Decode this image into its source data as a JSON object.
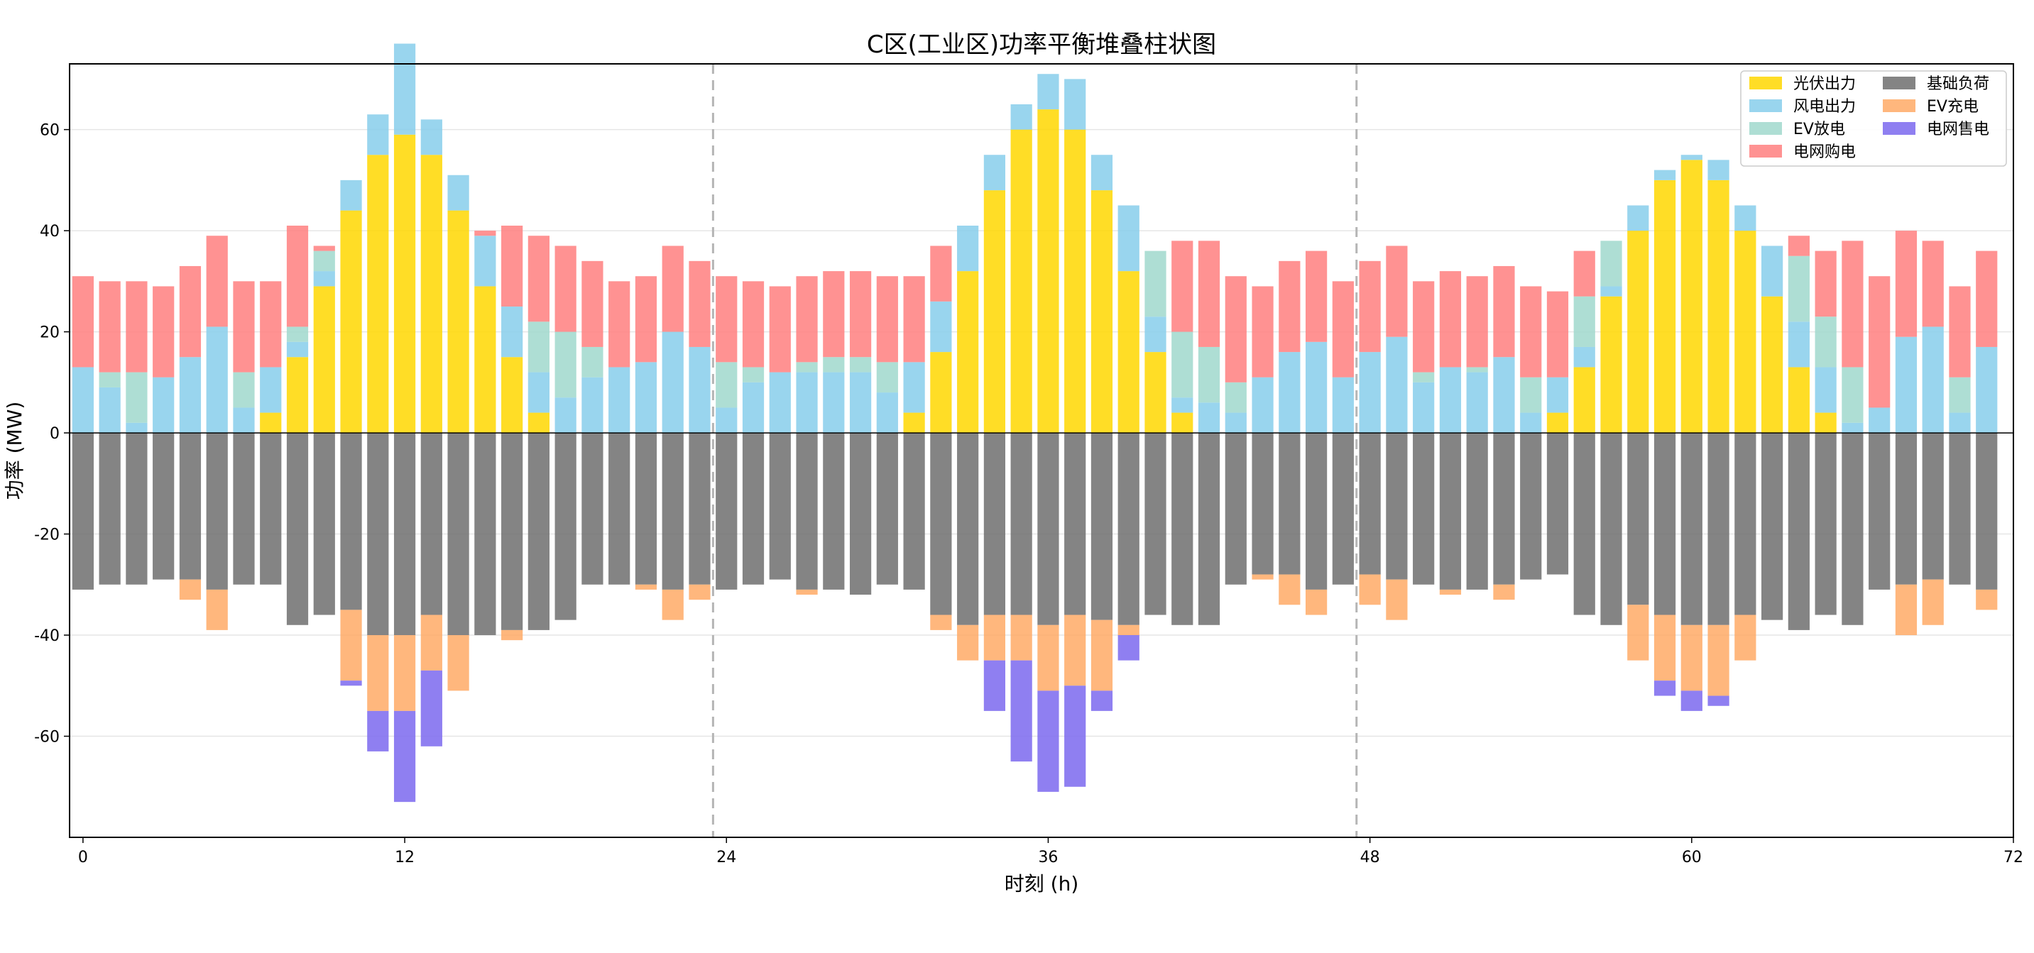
{
  "chart_data": {
    "type": "bar",
    "stacked": true,
    "title": "C区(工业区)功率平衡堆叠柱状图",
    "xlabel": "时刻 (h)",
    "ylabel": "功率 (MW)",
    "xlim": [
      -0.5,
      72
    ],
    "ylim": [
      -80,
      73
    ],
    "xticks": [
      0,
      12,
      24,
      36,
      48,
      60,
      72
    ],
    "yticks": [
      -60,
      -40,
      -20,
      0,
      20,
      40,
      60
    ],
    "day_separators": [
      23.5,
      47.5
    ],
    "grid": "horizontal",
    "legend_position": "top-right",
    "x": [
      0,
      1,
      2,
      3,
      4,
      5,
      6,
      7,
      8,
      9,
      10,
      11,
      12,
      13,
      14,
      15,
      16,
      17,
      18,
      19,
      20,
      21,
      22,
      23,
      24,
      25,
      26,
      27,
      28,
      29,
      30,
      31,
      32,
      33,
      34,
      35,
      36,
      37,
      38,
      39,
      40,
      41,
      42,
      43,
      44,
      45,
      46,
      47,
      48,
      49,
      50,
      51,
      52,
      53,
      54,
      55,
      56,
      57,
      58,
      59,
      60,
      61,
      62,
      63,
      64,
      65,
      66,
      67,
      68,
      69,
      70,
      71
    ],
    "series": [
      {
        "name": "光伏出力",
        "color": "#FFD700",
        "values": [
          0,
          0,
          0,
          0,
          0,
          0,
          0,
          4,
          15,
          29,
          44,
          55,
          59,
          55,
          44,
          29,
          15,
          4,
          0,
          0,
          0,
          0,
          0,
          0,
          0,
          0,
          0,
          0,
          0,
          0,
          0,
          4,
          16,
          32,
          48,
          60,
          64,
          60,
          48,
          32,
          16,
          4,
          0,
          0,
          0,
          0,
          0,
          0,
          0,
          0,
          0,
          0,
          0,
          0,
          0,
          4,
          13,
          27,
          40,
          50,
          54,
          50,
          40,
          27,
          13,
          4,
          0,
          0,
          0,
          0,
          0,
          0
        ]
      },
      {
        "name": "风电出力",
        "color": "#87CEEB",
        "values": [
          13,
          9,
          2,
          11,
          15,
          21,
          5,
          9,
          3,
          3,
          6,
          8,
          18,
          7,
          7,
          10,
          10,
          8,
          7,
          11,
          13,
          14,
          20,
          17,
          5,
          10,
          12,
          12,
          12,
          12,
          8,
          10,
          10,
          9,
          7,
          5,
          7,
          10,
          7,
          13,
          7,
          3,
          6,
          4,
          11,
          16,
          18,
          11,
          16,
          19,
          10,
          13,
          12,
          15,
          4,
          7,
          4,
          2,
          5,
          2,
          1,
          4,
          5,
          10,
          9,
          9,
          2,
          5,
          19,
          21,
          4,
          17
        ]
      },
      {
        "name": "EV放电",
        "color": "#A0D8CC",
        "values": [
          0,
          3,
          10,
          0,
          0,
          0,
          7,
          0,
          3,
          4,
          0,
          0,
          0,
          0,
          0,
          0,
          0,
          10,
          13,
          6,
          0,
          0,
          0,
          0,
          9,
          3,
          0,
          2,
          3,
          3,
          6,
          0,
          0,
          0,
          0,
          0,
          0,
          0,
          0,
          0,
          13,
          13,
          11,
          6,
          0,
          0,
          0,
          0,
          0,
          0,
          2,
          0,
          1,
          0,
          7,
          0,
          10,
          9,
          0,
          0,
          0,
          0,
          0,
          0,
          13,
          10,
          11,
          0,
          0,
          0,
          7,
          0
        ]
      },
      {
        "name": "电网购电",
        "color": "#FF7F7F",
        "values": [
          18,
          18,
          18,
          18,
          18,
          18,
          18,
          17,
          20,
          1,
          0,
          0,
          0,
          0,
          0,
          1,
          16,
          17,
          17,
          17,
          17,
          17,
          17,
          17,
          17,
          17,
          17,
          17,
          17,
          17,
          17,
          17,
          11,
          0,
          0,
          0,
          0,
          0,
          0,
          0,
          0,
          18,
          21,
          21,
          18,
          18,
          18,
          19,
          18,
          18,
          18,
          19,
          18,
          18,
          18,
          17,
          9,
          0,
          0,
          0,
          0,
          0,
          0,
          0,
          4,
          13,
          25,
          26,
          21,
          17,
          18,
          19
        ]
      },
      {
        "name": "基础负荷",
        "color": "#6E6E6E",
        "values": [
          -31,
          -30,
          -30,
          -29,
          -29,
          -31,
          -30,
          -30,
          -38,
          -36,
          -35,
          -40,
          -40,
          -36,
          -40,
          -40,
          -39,
          -39,
          -37,
          -30,
          -30,
          -30,
          -31,
          -30,
          -31,
          -30,
          -29,
          -31,
          -31,
          -32,
          -30,
          -31,
          -36,
          -38,
          -36,
          -36,
          -38,
          -36,
          -37,
          -38,
          -36,
          -38,
          -38,
          -30,
          -28,
          -28,
          -31,
          -30,
          -28,
          -29,
          -30,
          -31,
          -31,
          -30,
          -29,
          -28,
          -36,
          -38,
          -34,
          -36,
          -38,
          -38,
          -36,
          -37,
          -39,
          -36,
          -38,
          -31,
          -30,
          -29,
          -30,
          -31
        ]
      },
      {
        "name": "EV充电",
        "color": "#FFAA66",
        "values": [
          0,
          0,
          0,
          0,
          -4,
          -8,
          0,
          0,
          0,
          0,
          -14,
          -15,
          -15,
          -11,
          -11,
          0,
          -2,
          0,
          0,
          0,
          0,
          -1,
          -6,
          -3,
          0,
          0,
          0,
          -1,
          0,
          0,
          0,
          0,
          -3,
          -7,
          -9,
          -9,
          -13,
          -14,
          -14,
          -2,
          0,
          0,
          0,
          0,
          -1,
          -6,
          -5,
          0,
          -6,
          -8,
          0,
          -1,
          0,
          -3,
          0,
          0,
          0,
          0,
          -11,
          -13,
          -13,
          -14,
          -9,
          0,
          0,
          0,
          0,
          0,
          -10,
          -9,
          0,
          -4
        ]
      },
      {
        "name": "电网售电",
        "color": "#7B68EE",
        "values": [
          0,
          0,
          0,
          0,
          0,
          0,
          0,
          0,
          0,
          0,
          -1,
          -8,
          -18,
          -15,
          0,
          0,
          0,
          0,
          0,
          0,
          0,
          0,
          0,
          0,
          0,
          0,
          0,
          0,
          0,
          0,
          0,
          0,
          0,
          0,
          -10,
          -20,
          -20,
          -20,
          -4,
          -5,
          0,
          0,
          0,
          0,
          0,
          0,
          0,
          0,
          0,
          0,
          0,
          0,
          0,
          0,
          0,
          0,
          0,
          0,
          0,
          -3,
          -4,
          -2,
          0,
          0,
          0,
          0,
          0,
          0,
          0,
          0,
          0,
          0
        ]
      }
    ]
  }
}
